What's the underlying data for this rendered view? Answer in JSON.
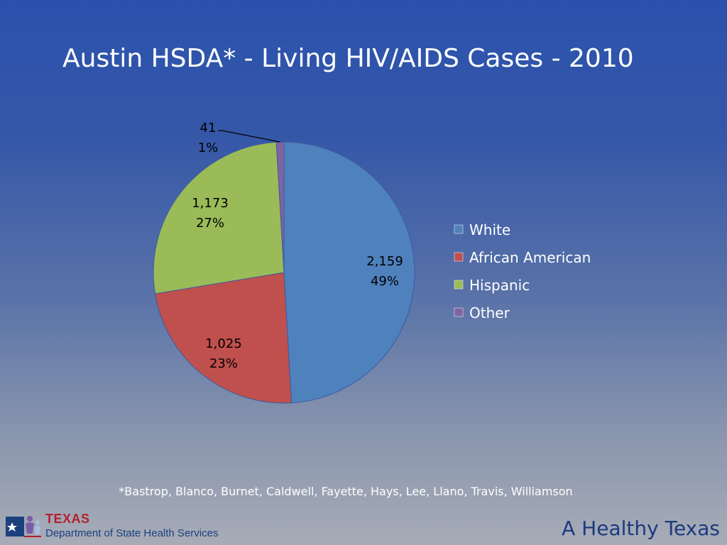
{
  "slide": {
    "title": "Austin HSDA* - Living HIV/AIDS Cases - 2010",
    "footnote": "*Bastrop, Blanco, Burnet, Caldwell, Fayette, Hays, Lee, Llano, Travis, Williamson",
    "logo_texas": "TEXAS",
    "logo_department": "Department of State Health Services",
    "tagline": "A Healthy Texas"
  },
  "chart_data": {
    "type": "pie",
    "title": "",
    "legend_position": "right",
    "slices": [
      {
        "label": "White",
        "value": 2159,
        "value_label": "2,159",
        "percent_label": "49%",
        "color": "#4f81bd"
      },
      {
        "label": "African American",
        "value": 1025,
        "value_label": "1,025",
        "percent_label": "23%",
        "color": "#c0504d"
      },
      {
        "label": "Hispanic",
        "value": 1173,
        "value_label": "1,173",
        "percent_label": "27%",
        "color": "#9bbb59"
      },
      {
        "label": "Other",
        "value": 41,
        "value_label": "41",
        "percent_label": "1%",
        "color": "#8064a2"
      }
    ]
  },
  "colors": {
    "text": "#ffffff",
    "label_text": "#000000",
    "slice_outline": "#3a5aa0"
  }
}
